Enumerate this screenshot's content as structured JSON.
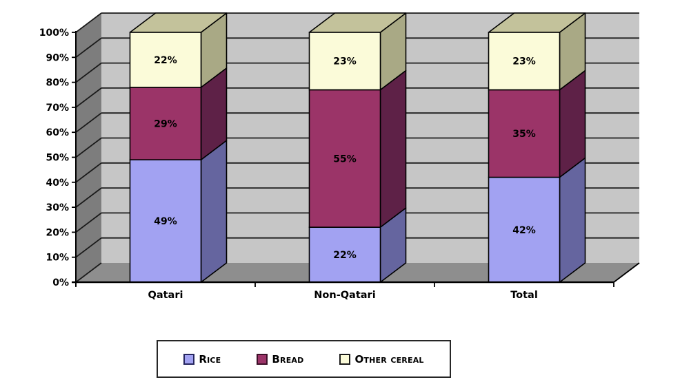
{
  "chart_data": {
    "type": "stacked-bar-3d",
    "title": "",
    "categories": [
      "Qatari",
      "Non-Qatari",
      "Total"
    ],
    "series": [
      {
        "name": "Rice",
        "values": [
          49,
          22,
          42
        ],
        "color_front": "#a2a2f2",
        "color_side": "#65659f"
      },
      {
        "name": "Bread",
        "values": [
          29,
          55,
          35
        ],
        "color_front": "#9b3468",
        "color_side": "#5e2147"
      },
      {
        "name": "Other cereal",
        "values": [
          22,
          23,
          23
        ],
        "color_front": "#fbfbd9",
        "color_side": "#a9a985",
        "color_top": "#c3c29b"
      }
    ],
    "ylim": [
      0,
      100
    ],
    "ytick_step": 10,
    "ytick_suffix": "%",
    "value_suffix": "%",
    "grid": true,
    "legend_position": "bottom",
    "walls": {
      "back": "#c6c6c6",
      "side": "#7d7d7d",
      "floor": "#8e8e8e",
      "gridline": "#1a1a1a"
    }
  },
  "legend": {
    "items": [
      {
        "label": "Rice",
        "fill": "#a2a2f2",
        "border": "#26265e"
      },
      {
        "label": "Bread",
        "fill": "#9b3468",
        "border": "#3d1029"
      },
      {
        "label": "Other cereal",
        "fill": "#fbfbd9",
        "border": "#1a1a1a"
      }
    ]
  }
}
